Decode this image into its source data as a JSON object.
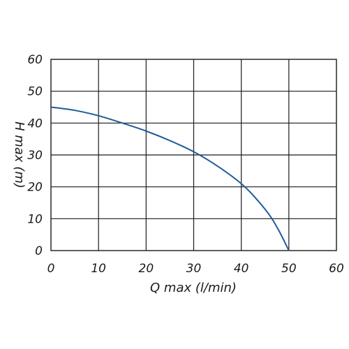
{
  "chart_data": {
    "type": "line",
    "title": "",
    "xlabel": "Q max (l/min)",
    "ylabel": "H max (m)",
    "xlim": [
      0,
      60
    ],
    "ylim": [
      0,
      60
    ],
    "xticks": [
      "0",
      "10",
      "20",
      "30",
      "40",
      "50",
      "60"
    ],
    "yticks": [
      "0",
      "10",
      "20",
      "30",
      "40",
      "50",
      "60"
    ],
    "grid": true,
    "legend": "none",
    "series": [
      {
        "color": "#1f5c99",
        "x": [
          0,
          5,
          10,
          15,
          20,
          25,
          30,
          35,
          40,
          43,
          46,
          48,
          50
        ],
        "y": [
          45,
          44,
          42.3,
          40,
          37.5,
          34.5,
          31,
          26.5,
          21,
          16.5,
          11,
          6,
          0
        ]
      }
    ]
  }
}
